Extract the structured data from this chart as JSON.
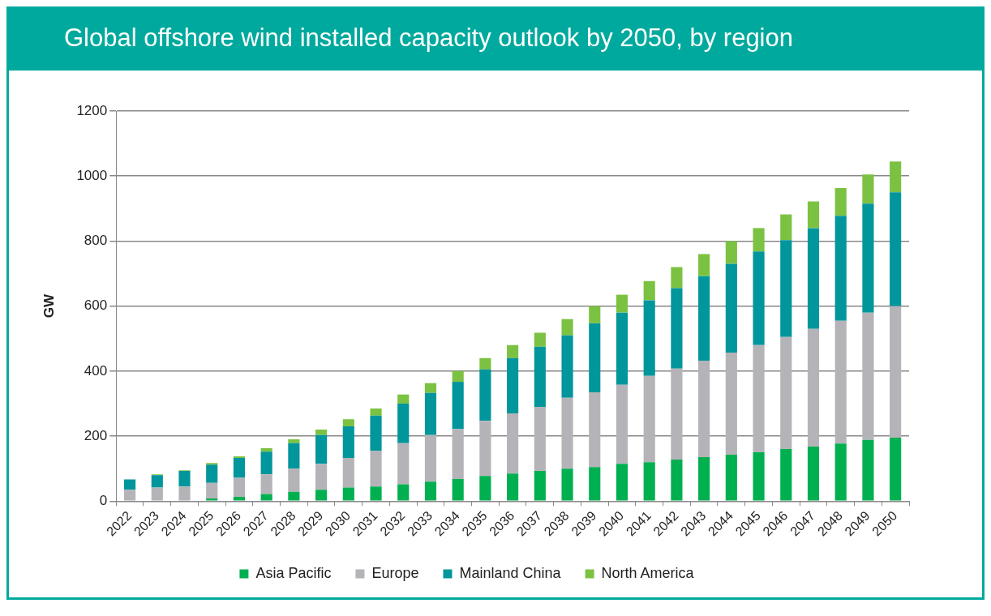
{
  "chart_data": {
    "type": "bar",
    "title": "Global offshore wind installed capacity outlook by 2050, by region",
    "ylabel": "GW",
    "stacked": true,
    "grid": "y",
    "legend": "bottom",
    "ylim": [
      0,
      1200
    ],
    "yticks": [
      0,
      200,
      400,
      600,
      800,
      1000,
      1200
    ],
    "categories": [
      "2022",
      "2023",
      "2024",
      "2025",
      "2026",
      "2027",
      "2028",
      "2029",
      "2030",
      "2031",
      "2032",
      "2033",
      "2034",
      "2035",
      "2036",
      "2037",
      "2038",
      "2039",
      "2040",
      "2041",
      "2042",
      "2043",
      "2044",
      "2045",
      "2046",
      "2047",
      "2048",
      "2049",
      "2050"
    ],
    "series": [
      {
        "name": "Asia Pacific",
        "color": "#00b050",
        "values": [
          0,
          0,
          null,
          8,
          13,
          22,
          29,
          35,
          42,
          45,
          52,
          60,
          68,
          77,
          85,
          93,
          100,
          105,
          115,
          120,
          128,
          135,
          143,
          150,
          160,
          168,
          177,
          188,
          195
        ]
      },
      {
        "name": "Europe",
        "color": "#b4b4b8",
        "values": [
          35,
          42,
          45,
          48,
          59,
          60,
          71,
          80,
          91,
          110,
          126,
          143,
          154,
          170,
          185,
          197,
          218,
          230,
          243,
          265,
          280,
          297,
          314,
          330,
          345,
          362,
          378,
          392,
          405
        ]
      },
      {
        "name": "Mainland China",
        "color": "#00969c",
        "values": [
          32,
          38,
          48,
          56,
          61,
          70,
          78,
          88,
          97,
          108,
          122,
          130,
          145,
          158,
          170,
          185,
          192,
          212,
          222,
          233,
          247,
          260,
          273,
          288,
          298,
          310,
          323,
          335,
          350
        ]
      },
      {
        "name": "North America",
        "color": "#7cc242",
        "values": [
          null,
          2,
          2,
          5,
          5,
          11,
          12,
          17,
          22,
          22,
          28,
          30,
          33,
          35,
          40,
          43,
          50,
          53,
          55,
          59,
          65,
          68,
          70,
          72,
          79,
          82,
          85,
          90,
          95
        ]
      }
    ]
  }
}
